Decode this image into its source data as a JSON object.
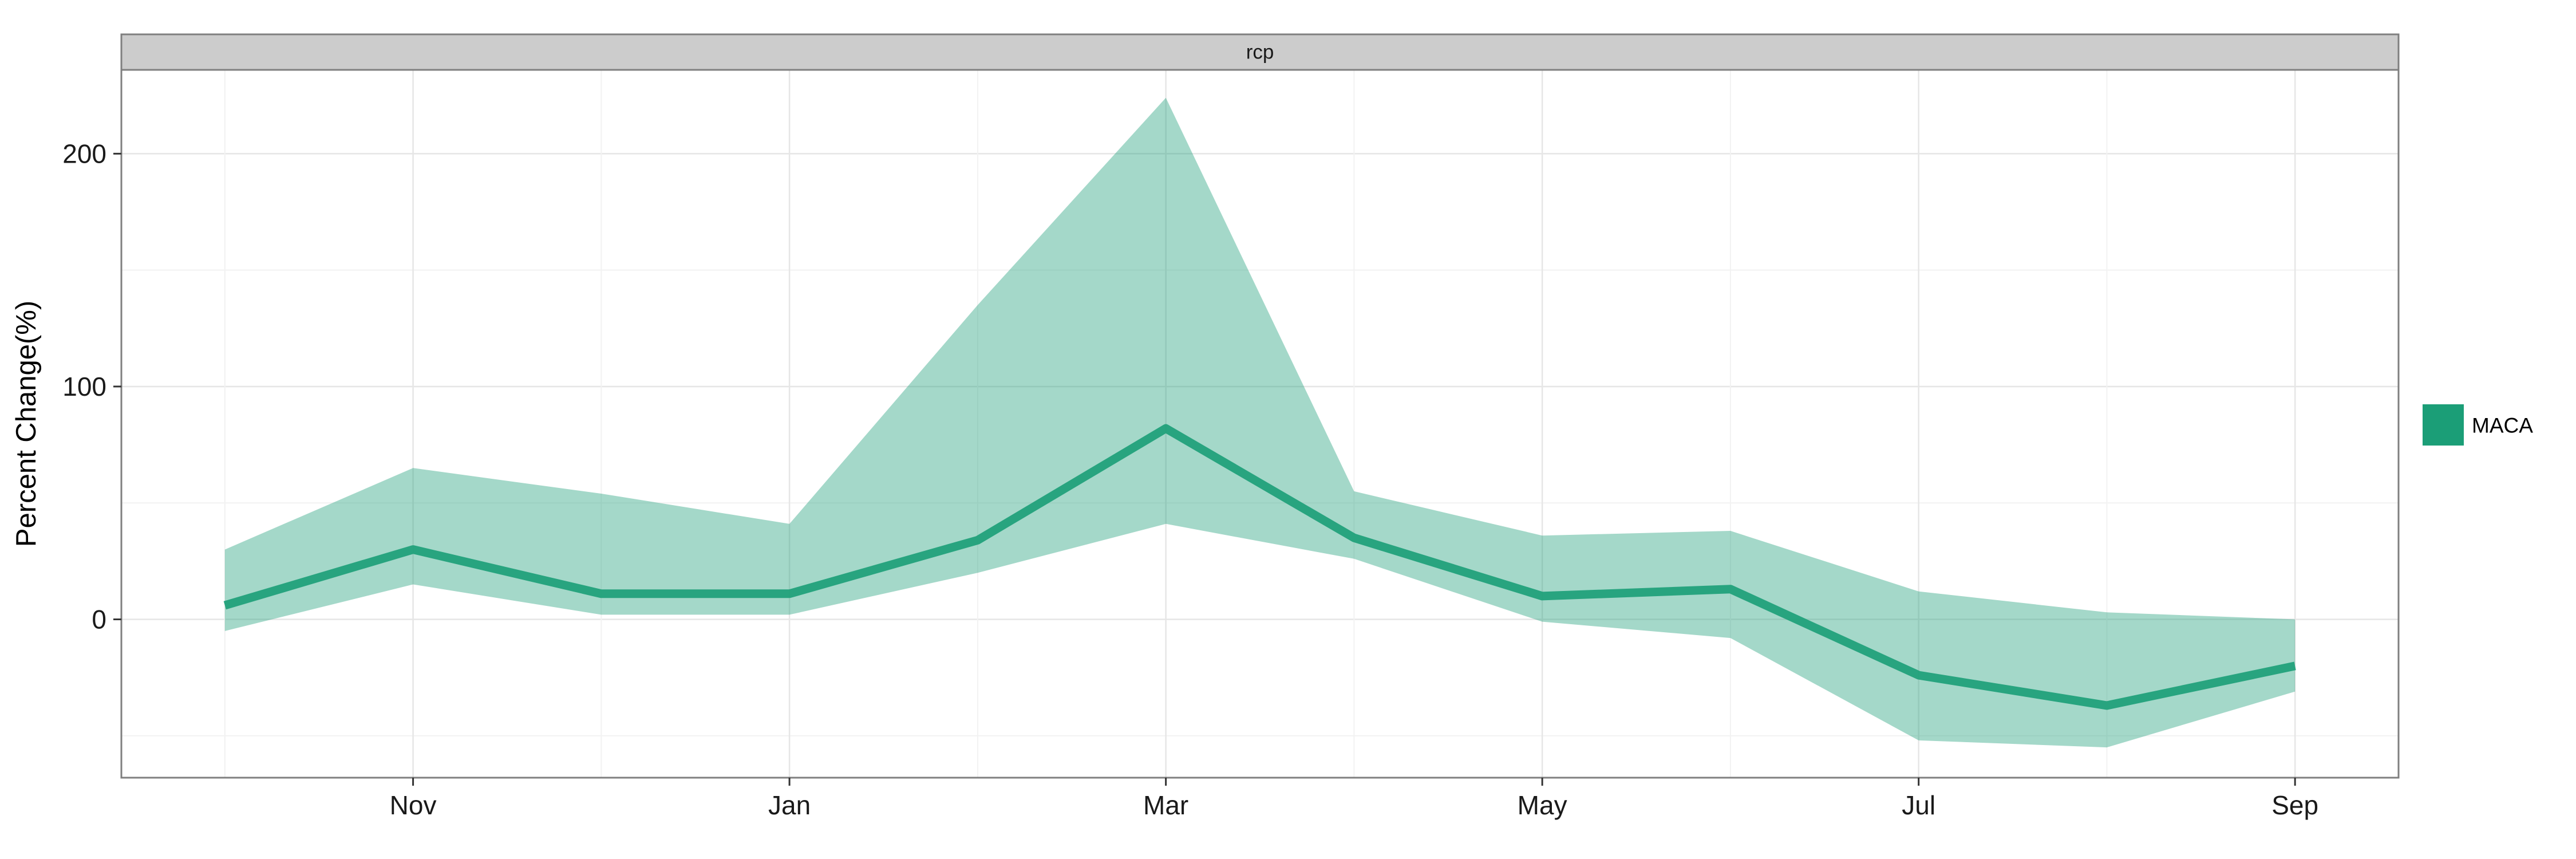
{
  "chart_data": {
    "type": "line",
    "facet_label": "rcp",
    "ylabel": "Percent Change(%)",
    "xlabel": "",
    "x_ticks": [
      "Nov",
      "Jan",
      "Mar",
      "May",
      "Jul",
      "Sep"
    ],
    "x_tick_positions": [
      2,
      4,
      6,
      8,
      10,
      12
    ],
    "xlim": [
      0.45,
      12.55
    ],
    "y_ticks": [
      0,
      100,
      200
    ],
    "ylim": [
      -68,
      236
    ],
    "grid": true,
    "legend_position": "right",
    "series": [
      {
        "name": "MACA",
        "color": "#1b9e77",
        "ribbon_alpha": 0.4,
        "x": [
          1,
          2,
          3,
          4,
          5,
          6,
          7,
          8,
          9,
          10,
          11,
          12
        ],
        "values": [
          6,
          30,
          11,
          11,
          34,
          82,
          35,
          10,
          13,
          -24,
          -37,
          -20
        ],
        "lower": [
          -5,
          15,
          2,
          2,
          20,
          41,
          26,
          -1,
          -8,
          -52,
          -55,
          -31
        ],
        "upper": [
          30,
          65,
          54,
          41,
          135,
          224,
          55,
          36,
          38,
          12,
          3,
          0
        ]
      }
    ]
  }
}
